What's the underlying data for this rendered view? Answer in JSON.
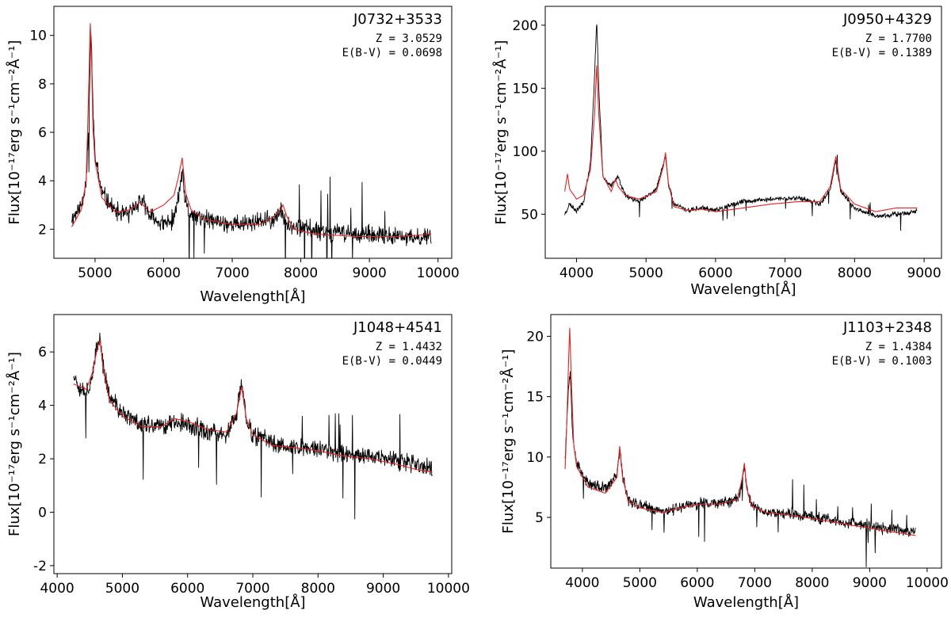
{
  "chart_data": [
    {
      "type": "line",
      "title": "J0732+3533",
      "annotations": [
        "Z  = 3.0529",
        "E(B-V) = 0.0698"
      ],
      "xlabel": "Wavelength[Å]",
      "ylabel": "Flux[10⁻¹⁷erg s⁻¹cm⁻²Å⁻¹]",
      "xlim": [
        4400,
        10200
      ],
      "ylim": [
        0.8,
        11.2
      ],
      "xticks": [
        5000,
        6000,
        7000,
        8000,
        9000,
        10000
      ],
      "yticks": [
        2,
        4,
        6,
        8,
        10
      ],
      "grid": false,
      "series": [
        {
          "color": "#000000",
          "noise": 0.35,
          "spike_pos": 7,
          "spike_neg": 10,
          "seed": 11,
          "x": [
            4660,
            4800,
            4870,
            4910,
            4935,
            4950,
            4975,
            5000,
            5100,
            5300,
            5500,
            5650,
            5700,
            5800,
            6000,
            6150,
            6220,
            6270,
            6320,
            6400,
            6600,
            7000,
            7400,
            7600,
            7700,
            7780,
            7900,
            8200,
            8500,
            8800,
            9100,
            9400,
            9700,
            9900
          ],
          "y": [
            2.4,
            3.0,
            4.0,
            6.5,
            9.8,
            9.5,
            6.5,
            5.0,
            3.5,
            2.7,
            2.6,
            3.2,
            3.1,
            2.5,
            2.2,
            2.4,
            3.4,
            4.4,
            3.0,
            2.6,
            2.4,
            2.2,
            2.3,
            2.4,
            2.7,
            2.4,
            2.1,
            2.0,
            1.9,
            1.8,
            1.7,
            1.7,
            1.6,
            1.8
          ]
        },
        {
          "color": "#ee2020",
          "noise": 0,
          "spike_pos": 0,
          "spike_neg": 0,
          "seed": 1,
          "x": [
            4660,
            4800,
            4870,
            4905,
            4930,
            4945,
            4970,
            5000,
            5100,
            5300,
            5500,
            5650,
            5700,
            5800,
            6000,
            6150,
            6220,
            6270,
            6320,
            6400,
            6600,
            7000,
            7400,
            7600,
            7700,
            7740,
            7800,
            7900,
            8200,
            8500,
            8800,
            9100,
            9400,
            9700,
            9900
          ],
          "y": [
            2.1,
            2.8,
            4.0,
            7.5,
            10.5,
            9.5,
            6.2,
            4.8,
            3.3,
            2.7,
            2.8,
            3.1,
            3.0,
            2.7,
            3.0,
            3.4,
            4.2,
            4.95,
            3.5,
            2.8,
            2.4,
            2.2,
            2.2,
            2.5,
            2.8,
            3.0,
            2.5,
            2.0,
            1.8,
            1.75,
            1.7,
            1.7,
            1.7,
            1.75,
            1.8
          ]
        }
      ]
    },
    {
      "type": "line",
      "title": "J0950+4329",
      "annotations": [
        "Z  = 1.7700",
        "E(B-V) = 0.1389"
      ],
      "xlabel": "Wavelength[Å]",
      "ylabel": "Flux[10⁻¹⁷erg s⁻¹cm⁻²Å⁻¹]",
      "xlim": [
        3550,
        9250
      ],
      "ylim": [
        15,
        215
      ],
      "xticks": [
        4000,
        5000,
        6000,
        7000,
        8000,
        9000
      ],
      "yticks": [
        50,
        100,
        150,
        200
      ],
      "grid": false,
      "series": [
        {
          "color": "#000000",
          "noise": 1.8,
          "spike_pos": 4,
          "spike_neg": 12,
          "seed": 23,
          "x": [
            3830,
            3900,
            4000,
            4100,
            4200,
            4260,
            4290,
            4320,
            4380,
            4500,
            4600,
            4700,
            4900,
            5150,
            5250,
            5280,
            5320,
            5400,
            5600,
            5800,
            6000,
            6400,
            6800,
            7200,
            7500,
            7650,
            7730,
            7800,
            8000,
            8300,
            8600,
            8900
          ],
          "y": [
            50,
            58,
            53,
            60,
            90,
            160,
            205,
            150,
            80,
            72,
            80,
            65,
            60,
            70,
            90,
            97,
            75,
            58,
            53,
            55,
            53,
            60,
            62,
            63,
            58,
            70,
            93,
            68,
            55,
            48,
            50,
            52
          ]
        },
        {
          "color": "#ee2020",
          "noise": 0,
          "spike_pos": 0,
          "spike_neg": 0,
          "seed": 2,
          "x": [
            3830,
            3870,
            3900,
            4000,
            4100,
            4200,
            4260,
            4290,
            4320,
            4380,
            4500,
            4560,
            4600,
            4700,
            4900,
            5150,
            5250,
            5280,
            5320,
            5400,
            5600,
            5800,
            6000,
            6400,
            6800,
            7200,
            7500,
            7650,
            7730,
            7800,
            8000,
            8300,
            8600,
            8900
          ],
          "y": [
            68,
            82,
            70,
            62,
            65,
            85,
            130,
            168,
            130,
            80,
            68,
            78,
            72,
            65,
            62,
            68,
            88,
            99,
            75,
            56,
            53,
            54,
            52,
            55,
            58,
            60,
            60,
            72,
            96,
            70,
            58,
            52,
            55,
            55
          ]
        }
      ]
    },
    {
      "type": "line",
      "title": "J1048+4541",
      "annotations": [
        "Z  = 1.4432",
        "E(B-V) = 0.0449"
      ],
      "xlabel": "Wavelength[Å]",
      "ylabel": "Flux[10⁻¹⁷erg s⁻¹cm⁻²Å⁻¹]",
      "xlim": [
        3950,
        10050
      ],
      "ylim": [
        -2.3,
        7.4
      ],
      "xticks": [
        4000,
        5000,
        6000,
        7000,
        8000,
        9000,
        10000
      ],
      "yticks": [
        -2,
        0,
        2,
        4,
        6
      ],
      "grid": false,
      "series": [
        {
          "color": "#000000",
          "noise": 0.32,
          "spike_pos": 8,
          "spike_neg": 8,
          "seed": 37,
          "x": [
            4250,
            4350,
            4450,
            4550,
            4620,
            4660,
            4700,
            4800,
            5000,
            5300,
            5600,
            5800,
            6000,
            6300,
            6600,
            6750,
            6830,
            6900,
            7000,
            7300,
            7700,
            8000,
            8400,
            8800,
            9200,
            9500,
            9750
          ],
          "y": [
            5.2,
            4.7,
            4.5,
            5.2,
            6.3,
            6.5,
            5.6,
            4.3,
            3.7,
            3.3,
            3.2,
            3.4,
            3.3,
            3.0,
            2.9,
            3.6,
            4.9,
            3.5,
            2.9,
            2.6,
            2.4,
            2.4,
            2.2,
            2.1,
            1.9,
            1.8,
            1.6
          ]
        },
        {
          "color": "#ee2020",
          "noise": 0,
          "spike_pos": 0,
          "spike_neg": 0,
          "seed": 3,
          "x": [
            4250,
            4350,
            4450,
            4550,
            4620,
            4660,
            4700,
            4800,
            5000,
            5300,
            5600,
            5800,
            6000,
            6300,
            6600,
            6750,
            6830,
            6900,
            7000,
            7300,
            7700,
            8000,
            8400,
            8800,
            9200,
            9500,
            9750
          ],
          "y": [
            4.8,
            4.7,
            4.6,
            5.3,
            6.2,
            6.4,
            5.5,
            4.2,
            3.6,
            3.2,
            3.2,
            3.5,
            3.4,
            3.1,
            3.0,
            3.7,
            4.7,
            3.5,
            2.9,
            2.5,
            2.4,
            2.3,
            2.1,
            2.0,
            1.8,
            1.6,
            1.5
          ]
        }
      ]
    },
    {
      "type": "line",
      "title": "J1103+2348",
      "annotations": [
        "Z  = 1.4384",
        "E(B-V) = 0.1003"
      ],
      "xlabel": "Wavelength[Å]",
      "ylabel": "Flux[10⁻¹⁷erg s⁻¹cm⁻²Å⁻¹]",
      "xlim": [
        3450,
        10250
      ],
      "ylim": [
        0.8,
        21.8
      ],
      "xticks": [
        4000,
        5000,
        6000,
        7000,
        8000,
        9000,
        10000
      ],
      "yticks": [
        5,
        10,
        15,
        20
      ],
      "grid": false,
      "series": [
        {
          "color": "#000000",
          "noise": 0.45,
          "spike_pos": 8,
          "spike_neg": 12,
          "seed": 53,
          "x": [
            3700,
            3730,
            3760,
            3790,
            3830,
            3900,
            4100,
            4400,
            4600,
            4650,
            4700,
            4800,
            5000,
            5400,
            5800,
            6100,
            6400,
            6700,
            6780,
            6820,
            6860,
            6950,
            7200,
            7600,
            8000,
            8500,
            9000,
            9400,
            9800
          ],
          "y": [
            10,
            13,
            16,
            17,
            12,
            9.5,
            7.8,
            7.3,
            8.5,
            10.5,
            8.5,
            6.5,
            6.0,
            5.5,
            6.0,
            6.2,
            6.2,
            6.5,
            8.0,
            9.2,
            7.5,
            6.0,
            5.5,
            5.3,
            5.0,
            4.6,
            4.3,
            4.0,
            3.8
          ]
        },
        {
          "color": "#ee2020",
          "noise": 0,
          "spike_pos": 0,
          "spike_neg": 0,
          "seed": 4,
          "x": [
            3700,
            3730,
            3760,
            3780,
            3810,
            3850,
            3900,
            4100,
            4400,
            4600,
            4650,
            4700,
            4800,
            5000,
            5400,
            5800,
            6100,
            6400,
            6700,
            6780,
            6820,
            6860,
            6950,
            7200,
            7600,
            8000,
            8500,
            9000,
            9400,
            9800
          ],
          "y": [
            9,
            13,
            18,
            20.7,
            16,
            11,
            9.2,
            7.5,
            7.0,
            8.3,
            10.9,
            8.3,
            6.3,
            5.8,
            5.4,
            5.9,
            6.1,
            6.1,
            6.5,
            8.2,
            9.5,
            7.4,
            5.9,
            5.4,
            5.2,
            4.9,
            4.5,
            4.1,
            3.8,
            3.5
          ]
        }
      ]
    }
  ]
}
